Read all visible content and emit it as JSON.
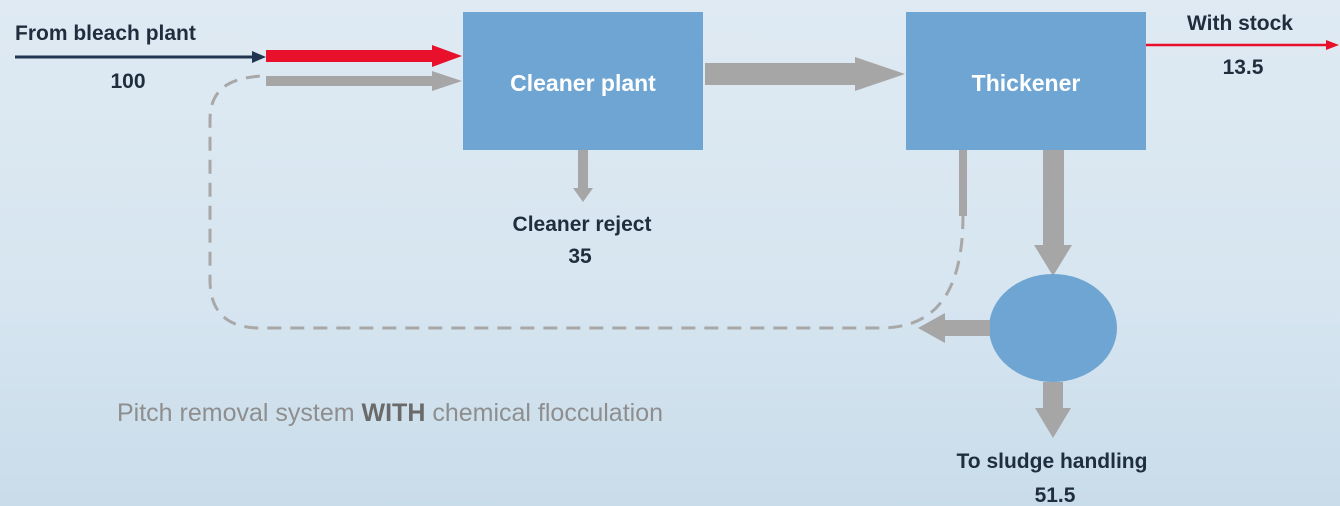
{
  "nodes": [
    {
      "label": "Cleaner plant"
    },
    {
      "label": "Thickener"
    }
  ],
  "flows": [
    {
      "label": "From bleach plant",
      "value": 100
    },
    {
      "label": "With stock",
      "value": 13.5
    },
    {
      "label": "Cleaner reject",
      "value": 35
    },
    {
      "label": "To sludge handling",
      "value": 51.5
    }
  ],
  "caption": {
    "before": "Pitch removal system",
    "bold": "WITH",
    "after": "chemical flocculation"
  }
}
